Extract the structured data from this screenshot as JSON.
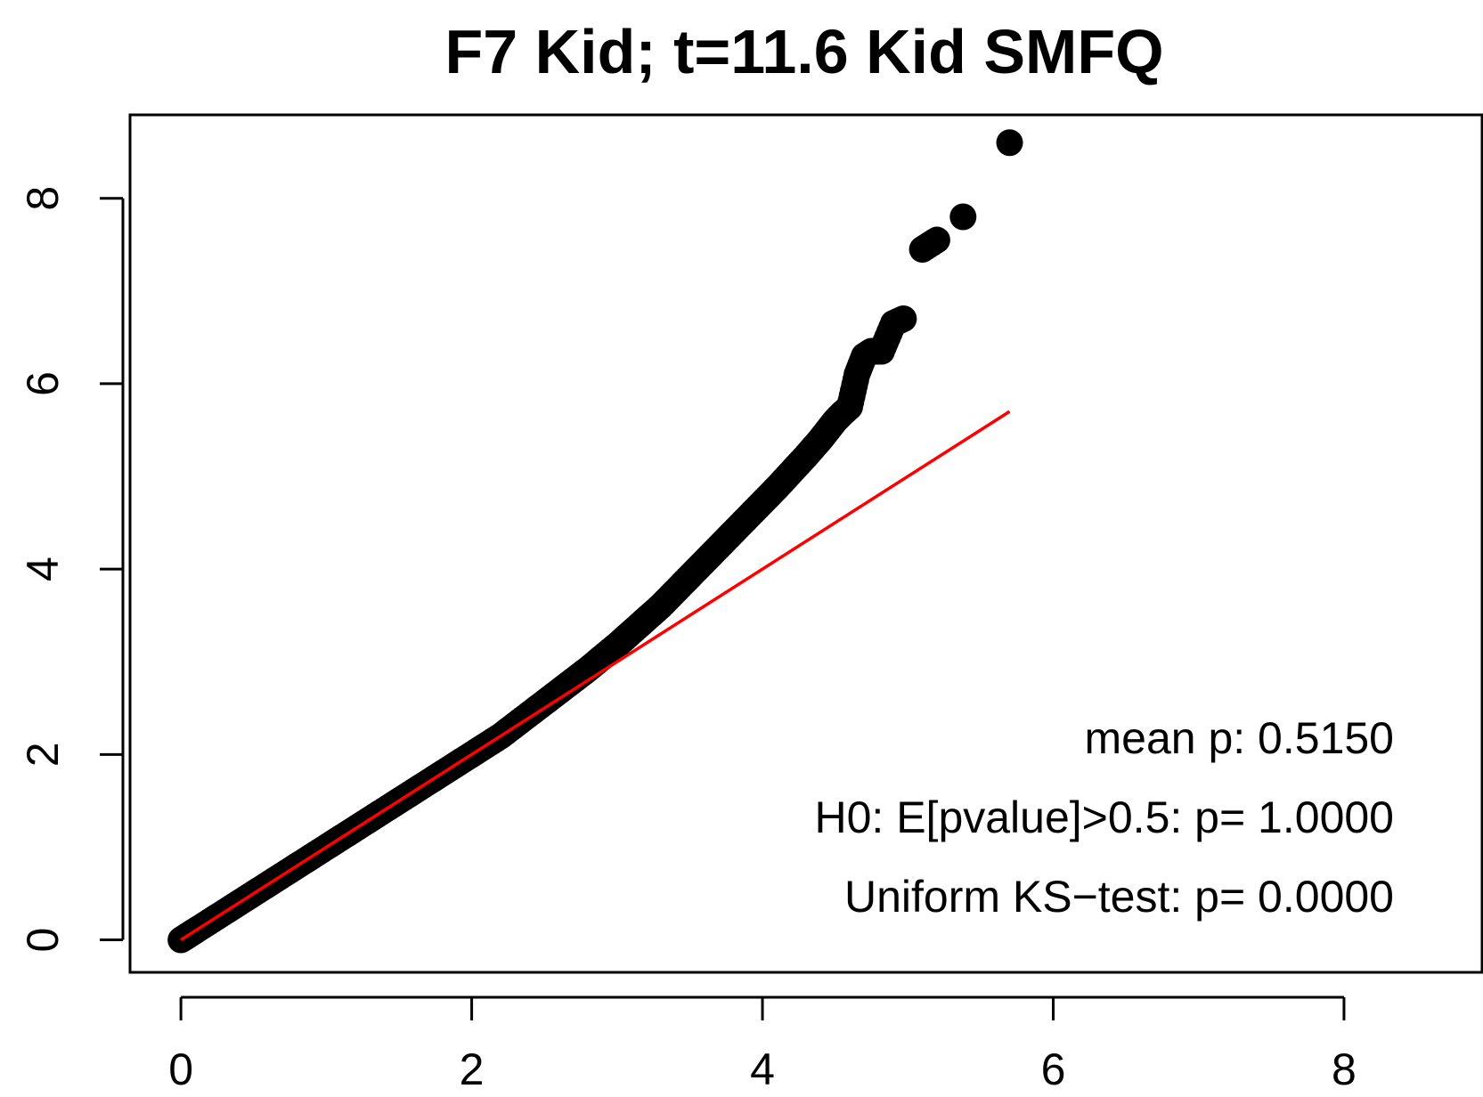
{
  "chart_data": {
    "type": "scatter",
    "title": "F7 Kid;   t=11.6 Kid SMFQ",
    "xlabel": "",
    "ylabel": "",
    "xlim": [
      -0.35,
      8.95
    ],
    "ylim": [
      -0.35,
      8.9
    ],
    "x_ticks": [
      0,
      2,
      4,
      6,
      8
    ],
    "y_ticks": [
      0,
      2,
      4,
      6,
      8
    ],
    "x_tick_labels": [
      "0",
      "2",
      "4",
      "6",
      "8"
    ],
    "y_tick_labels": [
      "0",
      "2",
      "4",
      "6",
      "8"
    ],
    "grid": false,
    "point_color": "#000000",
    "line_color": "#ff0000",
    "series": [
      {
        "kind": "points",
        "x": [
          0.0,
          0.05,
          0.1,
          0.2,
          0.3,
          0.4,
          0.5,
          0.6,
          0.7,
          0.8,
          0.9,
          1.0,
          1.1,
          1.2,
          1.3,
          1.4,
          1.5,
          1.6,
          1.7,
          1.8,
          1.9,
          2.0,
          2.1,
          2.2,
          2.3,
          2.4,
          2.5,
          2.6,
          2.7,
          2.8,
          2.9,
          3.0,
          3.1,
          3.2,
          3.3,
          3.4,
          3.5,
          3.6,
          3.7,
          3.8,
          3.9,
          4.0,
          4.1,
          4.2,
          4.3,
          4.4,
          4.45,
          4.5,
          4.55,
          4.6,
          4.65,
          4.7,
          4.75,
          4.82,
          4.9,
          4.97,
          5.1,
          5.2,
          5.38,
          5.7
        ],
        "y": [
          0.0,
          0.05,
          0.1,
          0.2,
          0.3,
          0.4,
          0.5,
          0.6,
          0.7,
          0.8,
          0.9,
          1.0,
          1.1,
          1.2,
          1.3,
          1.4,
          1.5,
          1.6,
          1.7,
          1.8,
          1.9,
          2.0,
          2.1,
          2.2,
          2.32,
          2.44,
          2.56,
          2.68,
          2.8,
          2.92,
          3.05,
          3.18,
          3.32,
          3.46,
          3.6,
          3.76,
          3.92,
          4.08,
          4.24,
          4.4,
          4.56,
          4.72,
          4.88,
          5.05,
          5.22,
          5.4,
          5.5,
          5.6,
          5.68,
          5.75,
          6.1,
          6.3,
          6.35,
          6.35,
          6.65,
          6.7,
          7.45,
          7.55,
          7.8,
          8.6
        ]
      },
      {
        "kind": "line",
        "x": [
          0,
          5.7
        ],
        "y": [
          0,
          5.7
        ]
      }
    ],
    "annotations": [
      "mean p:  0.5150",
      "H0: E[pvalue]>0.5: p= 1.0000",
      "Uniform KS−test: p= 0.0000"
    ]
  }
}
